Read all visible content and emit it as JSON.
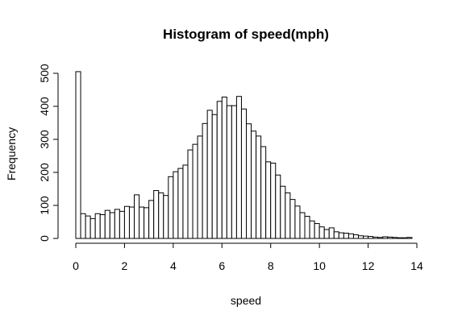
{
  "chart_data": {
    "type": "bar",
    "title": "Histogram of speed(mph)",
    "xlabel": "speed",
    "ylabel": "Frequency",
    "xlim": [
      0,
      14
    ],
    "ylim": [
      0,
      500
    ],
    "xticks": [
      0,
      2,
      4,
      6,
      8,
      10,
      12,
      14
    ],
    "yticks": [
      0,
      100,
      200,
      300,
      400,
      500
    ],
    "bin_width": 0.2,
    "bin_starts": [
      0.0,
      0.2,
      0.4,
      0.6,
      0.8,
      1.0,
      1.2,
      1.4,
      1.6,
      1.8,
      2.0,
      2.2,
      2.4,
      2.6,
      2.8,
      3.0,
      3.2,
      3.4,
      3.6,
      3.8,
      4.0,
      4.2,
      4.4,
      4.6,
      4.8,
      5.0,
      5.2,
      5.4,
      5.6,
      5.8,
      6.0,
      6.2,
      6.4,
      6.6,
      6.8,
      7.0,
      7.2,
      7.4,
      7.6,
      7.8,
      8.0,
      8.2,
      8.4,
      8.6,
      8.8,
      9.0,
      9.2,
      9.4,
      9.6,
      9.8,
      10.0,
      10.2,
      10.4,
      10.6,
      10.8,
      11.0,
      11.2,
      11.4,
      11.6,
      11.8,
      12.0,
      12.2,
      12.4,
      12.6,
      12.8,
      13.0,
      13.2,
      13.4,
      13.6
    ],
    "values": [
      505,
      75,
      68,
      60,
      75,
      72,
      85,
      78,
      88,
      82,
      97,
      95,
      132,
      95,
      93,
      115,
      145,
      138,
      130,
      187,
      202,
      212,
      222,
      268,
      285,
      310,
      348,
      388,
      375,
      415,
      428,
      402,
      402,
      430,
      392,
      347,
      325,
      310,
      278,
      232,
      228,
      192,
      158,
      138,
      118,
      98,
      78,
      67,
      53,
      45,
      35,
      27,
      32,
      20,
      17,
      16,
      14,
      11,
      8,
      7,
      6,
      4,
      3,
      5,
      4,
      3,
      2,
      2,
      3
    ]
  }
}
